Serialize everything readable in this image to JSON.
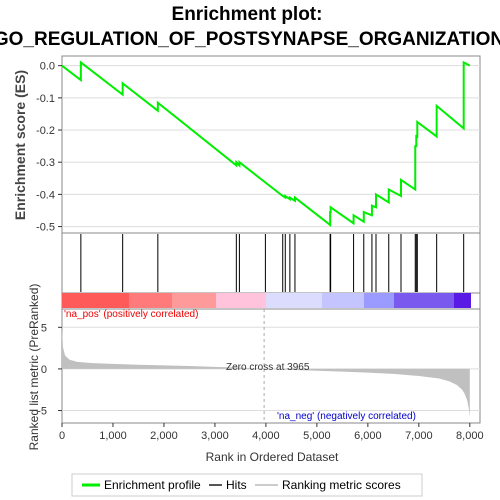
{
  "title_line1": "Enrichment plot:",
  "title_line2": "GO_REGULATION_OF_POSTSYNAPSE_ORGANIZATION",
  "colors": {
    "es_line": "#00ee00",
    "hit": "#000000",
    "metric_fill": "#c0c0c0",
    "pos_label": "#ee0000",
    "neg_label": "#0000cc",
    "grid": "#dddddd"
  },
  "chart_data": [
    {
      "type": "line",
      "name": "enrichment-profile",
      "ylabel": "Enrichment score (ES)",
      "xlim": [
        0,
        8200
      ],
      "ylim": [
        -0.52,
        0.03
      ],
      "yticks": [
        0.0,
        -0.1,
        -0.2,
        -0.3,
        -0.4,
        -0.5
      ],
      "ytick_labels": [
        "0.0",
        "-0.1",
        "-0.2",
        "-0.3",
        "-0.4",
        "-0.5"
      ],
      "grid": true,
      "x": [
        0,
        370,
        370,
        1190,
        1190,
        1880,
        1880,
        3420,
        3420,
        3480,
        3480,
        4330,
        4330,
        4380,
        4380,
        4470,
        4470,
        4570,
        4570,
        5260,
        5260,
        5270,
        5270,
        5720,
        5720,
        5920,
        5920,
        6080,
        6080,
        6160,
        6160,
        6410,
        6410,
        6650,
        6650,
        6930,
        6930,
        6950,
        6950,
        6970,
        6970,
        7350,
        7350,
        7880,
        7880,
        8000
      ],
      "y": [
        0.0,
        -0.045,
        0.01,
        -0.09,
        -0.055,
        -0.14,
        -0.115,
        -0.31,
        -0.3,
        -0.31,
        -0.3,
        -0.405,
        -0.405,
        -0.41,
        -0.405,
        -0.415,
        -0.41,
        -0.42,
        -0.41,
        -0.495,
        -0.455,
        -0.455,
        -0.44,
        -0.49,
        -0.465,
        -0.485,
        -0.455,
        -0.465,
        -0.435,
        -0.44,
        -0.4,
        -0.425,
        -0.385,
        -0.405,
        -0.355,
        -0.385,
        -0.25,
        -0.25,
        -0.215,
        -0.225,
        -0.175,
        -0.22,
        -0.125,
        -0.195,
        0.01,
        0.0
      ]
    },
    {
      "type": "scatter",
      "name": "hits",
      "xlim": [
        0,
        8200
      ],
      "x": [
        370,
        1190,
        1880,
        3420,
        3480,
        3990,
        4330,
        4380,
        4470,
        4570,
        5260,
        5270,
        5720,
        5920,
        6080,
        6160,
        6410,
        6650,
        6930,
        6950,
        6970,
        7350,
        7880
      ]
    },
    {
      "type": "area",
      "name": "ranking-metric",
      "ylabel": "Ranked list metric (PreRanked)",
      "xlabel": "Rank in Ordered Dataset",
      "xlim": [
        0,
        8200
      ],
      "ylim": [
        -6.5,
        7.2
      ],
      "xticks": [
        0,
        1000,
        2000,
        3000,
        4000,
        5000,
        6000,
        7000,
        8000
      ],
      "xtick_labels": [
        "0",
        "1,000",
        "2,000",
        "3,000",
        "4,000",
        "5,000",
        "6,000",
        "7,000",
        "8,000"
      ],
      "yticks": [
        5,
        0,
        -5
      ],
      "ytick_labels": [
        "5",
        "0",
        "-5"
      ],
      "x": [
        0,
        20,
        60,
        150,
        300,
        600,
        1000,
        1500,
        2000,
        2500,
        3000,
        3500,
        3965,
        4500,
        5000,
        5500,
        6000,
        6500,
        7000,
        7400,
        7600,
        7750,
        7850,
        7900,
        7950,
        7980,
        8000
      ],
      "y": [
        4.9,
        2.6,
        1.6,
        1.1,
        0.85,
        0.7,
        0.6,
        0.5,
        0.42,
        0.35,
        0.25,
        0.15,
        0.0,
        -0.12,
        -0.22,
        -0.33,
        -0.45,
        -0.6,
        -0.85,
        -1.15,
        -1.5,
        -1.95,
        -2.5,
        -3.0,
        -3.8,
        -4.8,
        -5.8
      ]
    }
  ],
  "annotations": {
    "pos_label": "'na_pos' (positively correlated)",
    "neg_label": "'na_neg' (negatively correlated)",
    "zero_cross": "Zero cross at 3965",
    "zero_cross_x": 3965
  },
  "legend": {
    "enrichment": "Enrichment profile",
    "hits": "Hits",
    "ranking": "Ranking metric scores"
  }
}
